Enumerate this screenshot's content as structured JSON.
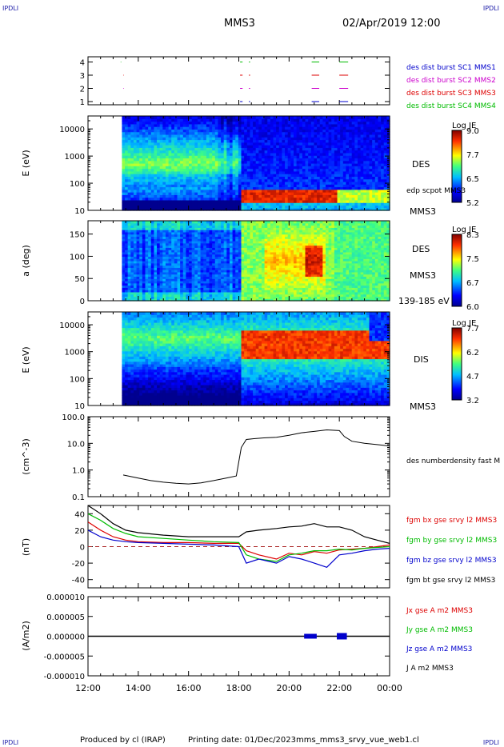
{
  "header": {
    "corner_tl": "IPDLI",
    "corner_tr": "IPDLI",
    "spacecraft": "MMS3",
    "datetime": "02/Apr/2019 12:00",
    "corner_bl": "IPDLI",
    "corner_br": "IPDLI"
  },
  "footer": {
    "producer": "Produced by cl (IRAP)",
    "printing": "Printing date: 01/Dec/2023",
    "script": "mms_mms3_srvy_vue_web1.cl"
  },
  "time_axis": {
    "labels": [
      "12:00",
      "14:00",
      "16:00",
      "18:00",
      "20:00",
      "22:00",
      "00:00"
    ]
  },
  "colors": {
    "red": "#dd0000",
    "green": "#00bb00",
    "blue": "#0000cc",
    "magenta": "#cc00cc",
    "black": "#000000",
    "dashed": "#aa2222"
  },
  "chart_data": [
    {
      "type": "line",
      "name": "burst availability",
      "yticks": [
        "1",
        "2",
        "3",
        "4"
      ],
      "legend": [
        {
          "text": "des dist burst SC1 MMS1",
          "color": "#0000cc"
        },
        {
          "text": "des dist burst SC2 MMS2",
          "color": "#cc00cc"
        },
        {
          "text": "des dist burst SC3 MMS3",
          "color": "#dd0000"
        },
        {
          "text": "des dist burst SC4 MMS4",
          "color": "#00bb00"
        }
      ],
      "segments": [
        {
          "level": 4,
          "color": "#00bb00",
          "x": [
            [
              13.3,
              13.32
            ],
            [
              18.05,
              18.15
            ],
            [
              18.4,
              18.45
            ],
            [
              20.9,
              21.2
            ],
            [
              22.0,
              22.35
            ]
          ]
        },
        {
          "level": 3,
          "color": "#dd0000",
          "x": [
            [
              13.4,
              13.42
            ],
            [
              18.05,
              18.15
            ],
            [
              18.4,
              18.45
            ],
            [
              20.9,
              21.2
            ],
            [
              22.0,
              22.35
            ]
          ]
        },
        {
          "level": 2,
          "color": "#cc00cc",
          "x": [
            [
              13.4,
              13.42
            ],
            [
              18.05,
              18.15
            ],
            [
              18.4,
              18.45
            ],
            [
              20.9,
              21.2
            ],
            [
              22.0,
              22.35
            ]
          ]
        },
        {
          "level": 1,
          "color": "#0000cc",
          "x": [
            [
              18.05,
              18.15
            ],
            [
              18.4,
              18.45
            ],
            [
              20.9,
              21.2
            ],
            [
              22.0,
              22.35
            ]
          ]
        }
      ]
    },
    {
      "type": "heatmap",
      "name": "DES energy spectrogram",
      "ylabel": "E (eV)",
      "yticks": [
        "10",
        "100",
        "1000",
        "10000"
      ],
      "ylim": [
        10,
        30000
      ],
      "colorbar": {
        "title": "Log JE",
        "ticks": [
          "9.0",
          "7.7",
          "6.5",
          "5.2"
        ],
        "range": [
          5.2,
          9.0
        ]
      },
      "labels": [
        "DES",
        "edp scpot MMS3",
        "MMS3"
      ]
    },
    {
      "type": "heatmap",
      "name": "DES pitch angle",
      "ylabel": "a (deg)",
      "yticks": [
        "0",
        "50",
        "100",
        "150"
      ],
      "ylim": [
        0,
        180
      ],
      "colorbar": {
        "title": "Log JE",
        "ticks": [
          "8.3",
          "7.5",
          "6.7",
          "6.0"
        ],
        "range": [
          6.0,
          8.3
        ]
      },
      "labels": [
        "DES",
        "MMS3",
        "139-185 eV"
      ]
    },
    {
      "type": "heatmap",
      "name": "DIS energy spectrogram",
      "ylabel": "E (eV)",
      "yticks": [
        "10",
        "100",
        "1000",
        "10000"
      ],
      "ylim": [
        10,
        30000
      ],
      "colorbar": {
        "title": "Log JE",
        "ticks": [
          "7.7",
          "6.2",
          "4.7",
          "3.2"
        ],
        "range": [
          3.2,
          7.7
        ]
      },
      "labels": [
        "DIS",
        "MMS3"
      ]
    },
    {
      "type": "line",
      "name": "density",
      "ylabel": "(cm^-3)",
      "yticks": [
        "0.1",
        "1.0",
        "10.0",
        "100.0"
      ],
      "ylim": [
        0.1,
        100
      ],
      "log": true,
      "legend": [
        {
          "text": "des numberdensity fast M",
          "color": "#000000"
        }
      ],
      "series": [
        {
          "x": [
            13.4,
            14.0,
            14.5,
            15.0,
            15.5,
            16.0,
            16.5,
            17.0,
            17.5,
            17.9,
            18.1,
            18.3,
            18.6,
            19.0,
            19.5,
            20.0,
            20.5,
            21.0,
            21.5,
            22.0,
            22.2,
            22.5,
            23.0,
            23.5,
            24.0
          ],
          "values": [
            0.65,
            0.5,
            0.4,
            0.35,
            0.32,
            0.3,
            0.33,
            0.4,
            0.5,
            0.6,
            7,
            14,
            15,
            16,
            17,
            20,
            25,
            28,
            32,
            30,
            18,
            12,
            10,
            9,
            8
          ]
        }
      ]
    },
    {
      "type": "line",
      "name": "magnetic field",
      "ylabel": "(nT)",
      "yticks": [
        "-40",
        "-20",
        "0",
        "20",
        "40"
      ],
      "ylim": [
        -50,
        50
      ],
      "legend": [
        {
          "text": "fgm bx gse srvy l2 MMS3",
          "color": "#dd0000"
        },
        {
          "text": "fgm by gse srvy l2 MMS3",
          "color": "#00bb00"
        },
        {
          "text": "fgm bz gse srvy l2 MMS3",
          "color": "#0000cc"
        },
        {
          "text": "fgm bt gse srvy l2 MMS3",
          "color": "#000000"
        }
      ],
      "series": [
        {
          "name": "fgm bx gse srvy l2 MMS3",
          "color": "#dd0000",
          "x": [
            12,
            12.5,
            13,
            13.5,
            14,
            15,
            16,
            17,
            18,
            18.3,
            18.8,
            19.5,
            20,
            20.5,
            21,
            21.5,
            22,
            22.5,
            23,
            23.5,
            24
          ],
          "values": [
            30,
            20,
            12,
            8,
            6,
            5,
            5,
            4,
            4,
            -5,
            -10,
            -15,
            -8,
            -10,
            -6,
            -8,
            -4,
            -3,
            -2,
            0,
            2
          ]
        },
        {
          "name": "fgm by gse srvy l2 MMS3",
          "color": "#00bb00",
          "x": [
            12,
            12.5,
            13,
            13.5,
            14,
            15,
            16,
            17,
            18,
            18.3,
            18.8,
            19.5,
            20,
            20.5,
            21,
            21.5,
            22,
            22.5,
            23,
            23.5,
            24
          ],
          "values": [
            40,
            32,
            22,
            16,
            12,
            10,
            8,
            6,
            5,
            -10,
            -15,
            -18,
            -10,
            -8,
            -5,
            -5,
            -3,
            -4,
            -2,
            -1,
            0
          ]
        },
        {
          "name": "fgm bz gse srvy l2 MMS3",
          "color": "#0000cc",
          "x": [
            12,
            12.5,
            13,
            13.5,
            14,
            15,
            16,
            17,
            18,
            18.3,
            18.8,
            19.5,
            20,
            20.5,
            21,
            21.5,
            22,
            22.5,
            23,
            23.5,
            24
          ],
          "values": [
            20,
            12,
            8,
            6,
            5,
            4,
            3,
            2,
            0,
            -20,
            -15,
            -20,
            -12,
            -15,
            -20,
            -25,
            -10,
            -8,
            -5,
            -3,
            -2
          ]
        },
        {
          "name": "fgm bt gse srvy l2 MMS3",
          "color": "#000000",
          "x": [
            12,
            12.5,
            13,
            13.5,
            14,
            15,
            16,
            17,
            18,
            18.3,
            18.8,
            19.5,
            20,
            20.5,
            21,
            21.5,
            22,
            22.5,
            23,
            23.5,
            24
          ],
          "values": [
            50,
            40,
            28,
            20,
            17,
            14,
            12,
            12,
            12,
            18,
            20,
            22,
            24,
            25,
            28,
            24,
            24,
            20,
            12,
            8,
            4
          ]
        }
      ]
    },
    {
      "type": "line",
      "name": "current density",
      "ylabel": "(A/m2)",
      "yticks": [
        "-0.000010",
        "-0.000005",
        "0.000000",
        "0.000005",
        "0.000010"
      ],
      "ylim": [
        -1e-05,
        1e-05
      ],
      "legend": [
        {
          "text": "Jx gse A m2 MMS3",
          "color": "#dd0000"
        },
        {
          "text": "Jy gse A m2 MMS3",
          "color": "#00bb00"
        },
        {
          "text": "Jz gse A m2 MMS3",
          "color": "#0000cc"
        },
        {
          "text": "J A m2 MMS3",
          "color": "#000000"
        }
      ],
      "series": [
        {
          "x": [
            12,
            24
          ],
          "values": [
            0,
            0
          ]
        }
      ]
    }
  ]
}
